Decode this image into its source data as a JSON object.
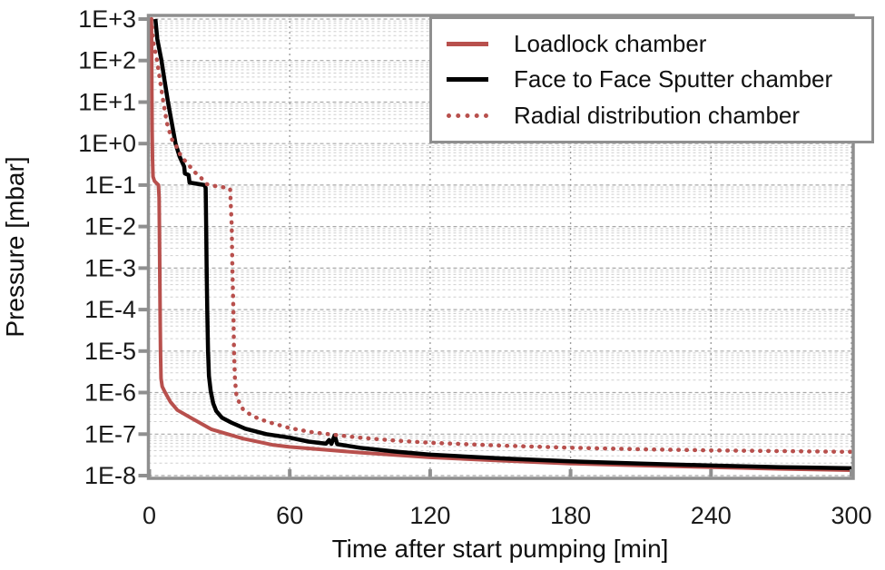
{
  "colors": {
    "axis_frame": "#8f8f8f",
    "grid_major": "#a8a8a8",
    "grid_minor": "#cfcfcf",
    "grid_vertical": "#9e9e9e",
    "tick_text": "#1a1a1a",
    "series_red": "#b8504d",
    "series_black": "#000000"
  },
  "chart_data": {
    "type": "line",
    "title": "",
    "xlabel": "Time after start pumping [min]",
    "ylabel": "Pressure [mbar]",
    "x_axis": {
      "min": 0,
      "max": 300,
      "ticks": [
        0,
        60,
        120,
        180,
        240,
        300
      ]
    },
    "y_axis": {
      "scale": "log",
      "min": 1e-08,
      "max": 1000.0,
      "ticks": [
        {
          "label": "1E+3",
          "value": 1000.0
        },
        {
          "label": "1E+2",
          "value": 100.0
        },
        {
          "label": "1E+1",
          "value": 10.0
        },
        {
          "label": "1E+0",
          "value": 1.0
        },
        {
          "label": "1E-1",
          "value": 0.1
        },
        {
          "label": "1E-2",
          "value": 0.01
        },
        {
          "label": "1E-3",
          "value": 0.001
        },
        {
          "label": "1E-4",
          "value": 0.0001
        },
        {
          "label": "1E-5",
          "value": 1e-05
        },
        {
          "label": "1E-6",
          "value": 1e-06
        },
        {
          "label": "1E-7",
          "value": 1e-07
        },
        {
          "label": "1E-8",
          "value": 1e-08
        }
      ]
    },
    "grid": {
      "horizontal_minor": true,
      "horizontal_major": true,
      "vertical_major": true
    },
    "legend_position": "top-right",
    "series": [
      {
        "id": "loadlock",
        "name": "Loadlock chamber",
        "color": "#b8504d",
        "style": "solid",
        "points": [
          [
            0.9,
            1000
          ],
          [
            1.0,
            150
          ],
          [
            1.1,
            15
          ],
          [
            1.2,
            2
          ],
          [
            1.35,
            0.45
          ],
          [
            1.6,
            0.16
          ],
          [
            2.2,
            0.125
          ],
          [
            3.9,
            0.1
          ],
          [
            4.2,
            0.05
          ],
          [
            4.35,
            0.006
          ],
          [
            4.5,
            0.0005
          ],
          [
            4.65,
            5e-05
          ],
          [
            4.8,
            8e-06
          ],
          [
            5.0,
            2.2e-06
          ],
          [
            5.5,
            1.4e-06
          ],
          [
            6.8,
            1e-06
          ],
          [
            9,
            6e-07
          ],
          [
            12,
            3.8e-07
          ],
          [
            17.6,
            2.5e-07
          ],
          [
            26.6,
            1.3e-07
          ],
          [
            40,
            7.8e-08
          ],
          [
            52.6,
            5.5e-08
          ],
          [
            60,
            4.9e-08
          ],
          [
            75,
            4.2e-08
          ],
          [
            90,
            3.6e-08
          ],
          [
            120,
            2.75e-08
          ],
          [
            150,
            2.3e-08
          ],
          [
            180,
            1.95e-08
          ],
          [
            210,
            1.75e-08
          ],
          [
            240,
            1.6e-08
          ],
          [
            270,
            1.45e-08
          ],
          [
            300,
            1.35e-08
          ]
        ]
      },
      {
        "id": "face-to-face-sputter",
        "name": "Face to Face Sputter chamber",
        "color": "#000000",
        "style": "solid",
        "points": [
          [
            2.6,
            1000
          ],
          [
            3.4,
            330
          ],
          [
            5.2,
            100
          ],
          [
            6.6,
            31
          ],
          [
            8.0,
            10
          ],
          [
            9.6,
            3.1
          ],
          [
            11.2,
            1
          ],
          [
            13,
            0.48
          ],
          [
            14.9,
            0.28
          ],
          [
            15.2,
            0.19
          ],
          [
            16.8,
            0.175
          ],
          [
            17.2,
            0.115
          ],
          [
            23.6,
            0.1
          ],
          [
            24.1,
            0.085
          ],
          [
            24.3,
            0.008
          ],
          [
            24.5,
            0.0008
          ],
          [
            24.8,
            8e-05
          ],
          [
            25.1,
            1e-05
          ],
          [
            25.5,
            2.5e-06
          ],
          [
            26.2,
            1.1e-06
          ],
          [
            27.3,
            5.5e-07
          ],
          [
            28.6,
            3.6e-07
          ],
          [
            31,
            2.5e-07
          ],
          [
            35,
            1.9e-07
          ],
          [
            41,
            1.35e-07
          ],
          [
            50,
            1e-07
          ],
          [
            60,
            8.2e-08
          ],
          [
            68,
            6.6e-08
          ],
          [
            74,
            6e-08
          ],
          [
            75.5,
            5.9e-08
          ],
          [
            76.8,
            7.2e-08
          ],
          [
            77.8,
            5.8e-08
          ],
          [
            79.2,
            9.4e-08
          ],
          [
            80.3,
            5.7e-08
          ],
          [
            90,
            4.7e-08
          ],
          [
            105,
            3.8e-08
          ],
          [
            120,
            3.2e-08
          ],
          [
            150,
            2.6e-08
          ],
          [
            180,
            2.2e-08
          ],
          [
            210,
            1.95e-08
          ],
          [
            240,
            1.75e-08
          ],
          [
            270,
            1.6e-08
          ],
          [
            300,
            1.5e-08
          ]
        ]
      },
      {
        "id": "radial-distribution",
        "name": "Radial distribution chamber",
        "color": "#b8504d",
        "style": "dotted",
        "points": [
          [
            0.9,
            1000
          ],
          [
            1.6,
            300
          ],
          [
            3.3,
            100
          ],
          [
            4.6,
            32
          ],
          [
            6.0,
            10
          ],
          [
            7.5,
            3.2
          ],
          [
            9.5,
            1.3
          ],
          [
            11,
            1
          ],
          [
            13.5,
            0.5
          ],
          [
            16.9,
            0.3
          ],
          [
            20,
            0.19
          ],
          [
            22.3,
            0.145
          ],
          [
            24.6,
            0.105
          ],
          [
            28,
            0.095
          ],
          [
            31,
            0.09
          ],
          [
            34.5,
            0.082
          ],
          [
            35.2,
            0.01
          ],
          [
            35.5,
            0.001
          ],
          [
            35.9,
            0.0001
          ],
          [
            36.2,
            1e-05
          ],
          [
            36.6,
            2e-06
          ],
          [
            37.2,
            9e-07
          ],
          [
            38.3,
            6e-07
          ],
          [
            40,
            4e-07
          ],
          [
            43,
            3e-07
          ],
          [
            47,
            2.3e-07
          ],
          [
            53,
            1.8e-07
          ],
          [
            60,
            1.4e-07
          ],
          [
            70,
            1.1e-07
          ],
          [
            80,
            9.5e-08
          ],
          [
            90,
            8.2e-08
          ],
          [
            105,
            7e-08
          ],
          [
            120,
            6.2e-08
          ],
          [
            150,
            5.3e-08
          ],
          [
            180,
            4.7e-08
          ],
          [
            210,
            4.3e-08
          ],
          [
            240,
            4.05e-08
          ],
          [
            270,
            3.9e-08
          ],
          [
            300,
            3.75e-08
          ]
        ]
      }
    ]
  }
}
